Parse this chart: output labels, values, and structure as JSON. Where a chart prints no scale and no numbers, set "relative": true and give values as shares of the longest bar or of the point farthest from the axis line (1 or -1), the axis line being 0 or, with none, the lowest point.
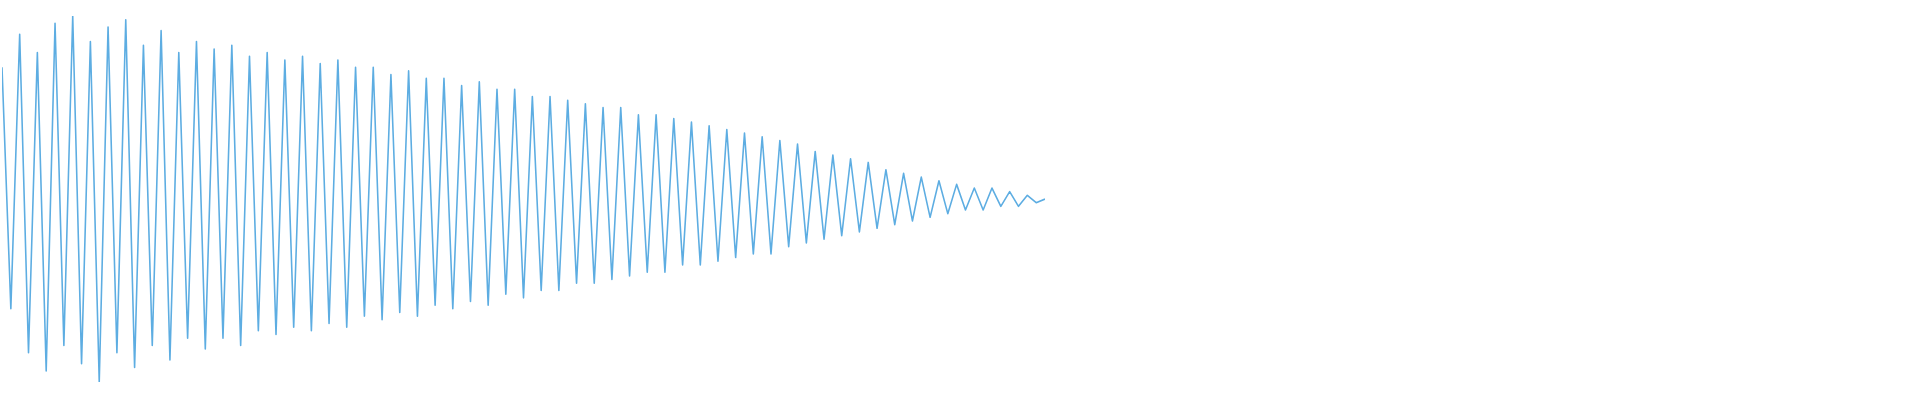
{
  "chart_data": {
    "type": "line",
    "relative": true,
    "color": "#5dade2",
    "categories": [
      null,
      null,
      null,
      null,
      null,
      null,
      null,
      null,
      null,
      null,
      null,
      null,
      null,
      null,
      null,
      null,
      null,
      null,
      null,
      null,
      null,
      null,
      null,
      null,
      null,
      null,
      null,
      null,
      null,
      null,
      null,
      null,
      null,
      null,
      null,
      null,
      null,
      null,
      null,
      null,
      null,
      null,
      null,
      null,
      null,
      null,
      null,
      null,
      null,
      null,
      null,
      null,
      null,
      null,
      null,
      null,
      null,
      null,
      null,
      null,
      null,
      null,
      null,
      null,
      null,
      null,
      null,
      null,
      null,
      null,
      null,
      null,
      null,
      null,
      null,
      null,
      null,
      null,
      null,
      null,
      null,
      null,
      null,
      null,
      null,
      null,
      null,
      null,
      null,
      null,
      null,
      null,
      null,
      null,
      null,
      null,
      null,
      null,
      null,
      null,
      null,
      null,
      null,
      null,
      null,
      null,
      null,
      null,
      null,
      null,
      null,
      null,
      null,
      null,
      null,
      null,
      null,
      null,
      null
    ],
    "values": [
      0.86,
      0.2,
      0.95,
      0.08,
      0.9,
      0.03,
      0.98,
      0.1,
      1.0,
      0.05,
      0.93,
      0.0,
      0.97,
      0.08,
      0.99,
      0.04,
      0.92,
      0.1,
      0.96,
      0.06,
      0.9,
      0.12,
      0.93,
      0.09,
      0.91,
      0.12,
      0.92,
      0.1,
      0.89,
      0.14,
      0.9,
      0.13,
      0.88,
      0.15,
      0.89,
      0.14,
      0.87,
      0.16,
      0.88,
      0.15,
      0.86,
      0.18,
      0.86,
      0.17,
      0.84,
      0.19,
      0.85,
      0.18,
      0.83,
      0.21,
      0.83,
      0.2,
      0.81,
      0.22,
      0.82,
      0.21,
      0.8,
      0.24,
      0.8,
      0.23,
      0.78,
      0.25,
      0.78,
      0.25,
      0.77,
      0.27,
      0.76,
      0.27,
      0.75,
      0.28,
      0.75,
      0.29,
      0.73,
      0.3,
      0.73,
      0.3,
      0.72,
      0.32,
      0.71,
      0.32,
      0.7,
      0.33,
      0.69,
      0.34,
      0.68,
      0.35,
      0.67,
      0.35,
      0.66,
      0.37,
      0.65,
      0.38,
      0.63,
      0.39,
      0.62,
      0.4,
      0.61,
      0.41,
      0.6,
      0.42,
      0.58,
      0.43,
      0.57,
      0.44,
      0.56,
      0.45,
      0.55,
      0.46,
      0.54,
      0.47,
      0.53,
      0.47,
      0.53,
      0.48,
      0.52,
      0.48,
      0.51,
      0.49,
      0.5
    ]
  }
}
